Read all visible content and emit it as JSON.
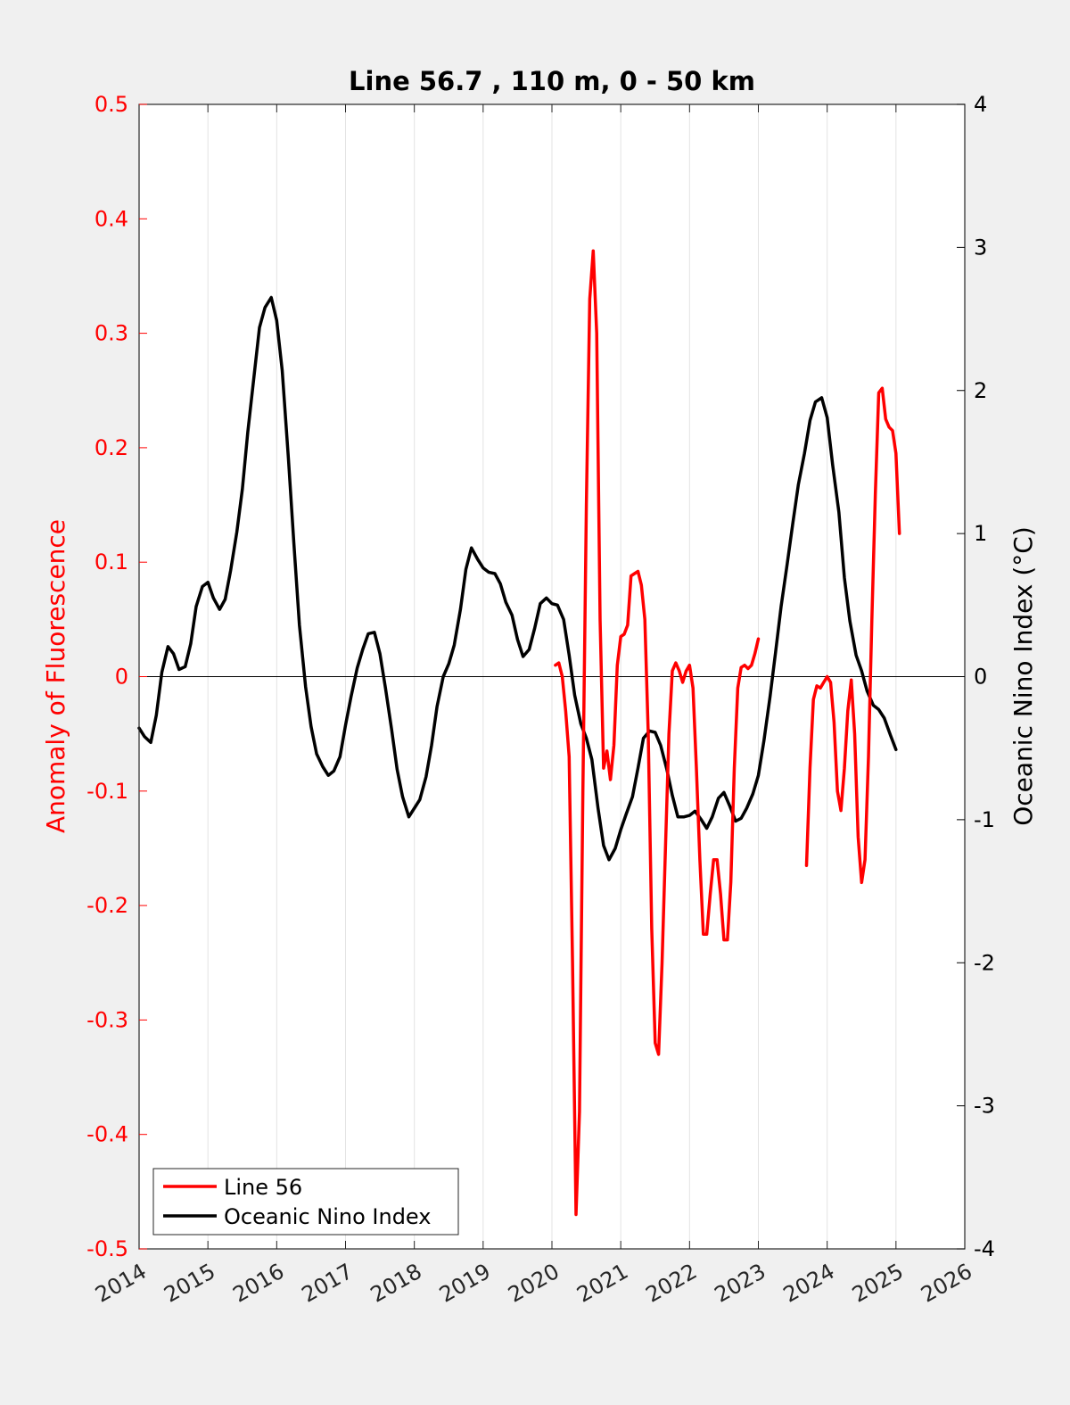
{
  "chart_data": {
    "type": "line",
    "title": "Line 56.7 , 110 m, 0 - 50 km",
    "ylabel_left": "Anomaly of Fluorescence",
    "ylabel_right": "Oceanic Nino Index (°C)",
    "xlim": [
      2014,
      2026
    ],
    "ylim_left": [
      -0.5,
      0.5
    ],
    "ylim_right": [
      -4,
      4
    ],
    "x_ticks": [
      "2014",
      "2015",
      "2016",
      "2017",
      "2018",
      "2019",
      "2020",
      "2021",
      "2022",
      "2023",
      "2024",
      "2025",
      "2026"
    ],
    "y_left_ticks": [
      "0.5",
      "0.4",
      "0.3",
      "0.2",
      "0.1",
      "0",
      "-0.1",
      "-0.2",
      "-0.3",
      "-0.4",
      "-0.5"
    ],
    "y_right_ticks": [
      "4",
      "3",
      "2",
      "1",
      "0",
      "-1",
      "-2",
      "-3",
      "-4"
    ],
    "grid": "vertical",
    "zero_line": true,
    "legend_position": "bottom-left",
    "colors": {
      "line56": "#ff0000",
      "oni": "#000000",
      "left_axis": "#ff0000",
      "right_axis": "#000000"
    },
    "series": [
      {
        "name": "Line 56",
        "axis": "left",
        "segments": [
          [
            [
              2020.05,
              0.01
            ],
            [
              2020.1,
              0.012
            ],
            [
              2020.15,
              0.0
            ],
            [
              2020.2,
              -0.03
            ],
            [
              2020.25,
              -0.07
            ],
            [
              2020.3,
              -0.25
            ],
            [
              2020.35,
              -0.47
            ],
            [
              2020.4,
              -0.38
            ],
            [
              2020.45,
              -0.1
            ],
            [
              2020.5,
              0.15
            ],
            [
              2020.55,
              0.33
            ],
            [
              2020.6,
              0.372
            ],
            [
              2020.65,
              0.3
            ],
            [
              2020.7,
              0.05
            ],
            [
              2020.75,
              -0.08
            ],
            [
              2020.8,
              -0.065
            ],
            [
              2020.85,
              -0.09
            ],
            [
              2020.9,
              -0.06
            ],
            [
              2020.95,
              0.01
            ],
            [
              2021.0,
              0.035
            ],
            [
              2021.05,
              0.037
            ],
            [
              2021.1,
              0.045
            ],
            [
              2021.15,
              0.088
            ],
            [
              2021.2,
              0.09
            ],
            [
              2021.25,
              0.092
            ],
            [
              2021.3,
              0.08
            ],
            [
              2021.35,
              0.05
            ],
            [
              2021.4,
              -0.05
            ],
            [
              2021.45,
              -0.22
            ],
            [
              2021.5,
              -0.32
            ],
            [
              2021.55,
              -0.33
            ],
            [
              2021.6,
              -0.25
            ],
            [
              2021.65,
              -0.15
            ],
            [
              2021.7,
              -0.05
            ],
            [
              2021.75,
              0.005
            ],
            [
              2021.8,
              0.012
            ],
            [
              2021.85,
              0.005
            ],
            [
              2021.9,
              -0.005
            ],
            [
              2021.95,
              0.005
            ],
            [
              2022.0,
              0.01
            ],
            [
              2022.05,
              -0.01
            ],
            [
              2022.1,
              -0.08
            ],
            [
              2022.15,
              -0.16
            ],
            [
              2022.2,
              -0.225
            ],
            [
              2022.25,
              -0.225
            ],
            [
              2022.3,
              -0.19
            ],
            [
              2022.35,
              -0.16
            ],
            [
              2022.4,
              -0.16
            ],
            [
              2022.45,
              -0.19
            ],
            [
              2022.5,
              -0.23
            ],
            [
              2022.55,
              -0.23
            ],
            [
              2022.6,
              -0.18
            ],
            [
              2022.65,
              -0.08
            ],
            [
              2022.7,
              -0.01
            ],
            [
              2022.75,
              0.008
            ],
            [
              2022.8,
              0.01
            ],
            [
              2022.85,
              0.007
            ],
            [
              2022.9,
              0.01
            ],
            [
              2022.95,
              0.02
            ],
            [
              2023.0,
              0.033
            ]
          ],
          [
            [
              2023.7,
              -0.165
            ],
            [
              2023.75,
              -0.08
            ],
            [
              2023.8,
              -0.02
            ],
            [
              2023.85,
              -0.008
            ],
            [
              2023.9,
              -0.01
            ],
            [
              2023.95,
              -0.005
            ],
            [
              2024.0,
              0.0
            ],
            [
              2024.05,
              -0.005
            ],
            [
              2024.1,
              -0.04
            ],
            [
              2024.15,
              -0.1
            ],
            [
              2024.2,
              -0.117
            ],
            [
              2024.25,
              -0.08
            ],
            [
              2024.3,
              -0.03
            ],
            [
              2024.35,
              -0.003
            ],
            [
              2024.4,
              -0.05
            ],
            [
              2024.45,
              -0.14
            ],
            [
              2024.5,
              -0.18
            ],
            [
              2024.55,
              -0.16
            ],
            [
              2024.6,
              -0.07
            ],
            [
              2024.65,
              0.05
            ],
            [
              2024.7,
              0.16
            ],
            [
              2024.75,
              0.248
            ],
            [
              2024.8,
              0.252
            ],
            [
              2024.85,
              0.225
            ],
            [
              2024.9,
              0.218
            ],
            [
              2024.95,
              0.215
            ],
            [
              2025.0,
              0.195
            ],
            [
              2025.05,
              0.125
            ]
          ]
        ]
      },
      {
        "name": "Oceanic Nino Index",
        "axis": "right",
        "segments": [
          [
            [
              2014.0,
              -0.36
            ],
            [
              2014.08,
              -0.42
            ],
            [
              2014.17,
              -0.46
            ],
            [
              2014.25,
              -0.27
            ],
            [
              2014.33,
              0.03
            ],
            [
              2014.42,
              0.21
            ],
            [
              2014.5,
              0.16
            ],
            [
              2014.58,
              0.05
            ],
            [
              2014.67,
              0.07
            ],
            [
              2014.75,
              0.23
            ],
            [
              2014.83,
              0.49
            ],
            [
              2014.92,
              0.63
            ],
            [
              2015.0,
              0.66
            ],
            [
              2015.08,
              0.55
            ],
            [
              2015.17,
              0.47
            ],
            [
              2015.25,
              0.54
            ],
            [
              2015.33,
              0.74
            ],
            [
              2015.42,
              1.01
            ],
            [
              2015.5,
              1.31
            ],
            [
              2015.58,
              1.71
            ],
            [
              2015.67,
              2.1
            ],
            [
              2015.75,
              2.44
            ],
            [
              2015.83,
              2.58
            ],
            [
              2015.92,
              2.65
            ],
            [
              2016.0,
              2.49
            ],
            [
              2016.08,
              2.14
            ],
            [
              2016.17,
              1.52
            ],
            [
              2016.25,
              0.93
            ],
            [
              2016.33,
              0.36
            ],
            [
              2016.42,
              -0.07
            ],
            [
              2016.5,
              -0.35
            ],
            [
              2016.58,
              -0.54
            ],
            [
              2016.67,
              -0.63
            ],
            [
              2016.75,
              -0.69
            ],
            [
              2016.83,
              -0.66
            ],
            [
              2016.92,
              -0.56
            ],
            [
              2017.0,
              -0.34
            ],
            [
              2017.08,
              -0.14
            ],
            [
              2017.17,
              0.06
            ],
            [
              2017.25,
              0.19
            ],
            [
              2017.33,
              0.3
            ],
            [
              2017.42,
              0.31
            ],
            [
              2017.5,
              0.16
            ],
            [
              2017.58,
              -0.08
            ],
            [
              2017.67,
              -0.37
            ],
            [
              2017.75,
              -0.65
            ],
            [
              2017.83,
              -0.84
            ],
            [
              2017.92,
              -0.98
            ],
            [
              2018.0,
              -0.92
            ],
            [
              2018.08,
              -0.86
            ],
            [
              2018.17,
              -0.7
            ],
            [
              2018.25,
              -0.48
            ],
            [
              2018.33,
              -0.21
            ],
            [
              2018.42,
              0.0
            ],
            [
              2018.5,
              0.09
            ],
            [
              2018.58,
              0.22
            ],
            [
              2018.67,
              0.47
            ],
            [
              2018.75,
              0.75
            ],
            [
              2018.83,
              0.9
            ],
            [
              2018.92,
              0.82
            ],
            [
              2019.0,
              0.76
            ],
            [
              2019.08,
              0.73
            ],
            [
              2019.17,
              0.72
            ],
            [
              2019.25,
              0.65
            ],
            [
              2019.33,
              0.52
            ],
            [
              2019.42,
              0.43
            ],
            [
              2019.5,
              0.26
            ],
            [
              2019.58,
              0.14
            ],
            [
              2019.67,
              0.19
            ],
            [
              2019.75,
              0.34
            ],
            [
              2019.83,
              0.51
            ],
            [
              2019.92,
              0.55
            ],
            [
              2020.0,
              0.51
            ],
            [
              2020.08,
              0.5
            ],
            [
              2020.17,
              0.4
            ],
            [
              2020.25,
              0.15
            ],
            [
              2020.33,
              -0.13
            ],
            [
              2020.42,
              -0.33
            ],
            [
              2020.5,
              -0.43
            ],
            [
              2020.58,
              -0.58
            ],
            [
              2020.67,
              -0.92
            ],
            [
              2020.75,
              -1.18
            ],
            [
              2020.83,
              -1.28
            ],
            [
              2020.92,
              -1.2
            ],
            [
              2021.0,
              -1.07
            ],
            [
              2021.08,
              -0.96
            ],
            [
              2021.17,
              -0.84
            ],
            [
              2021.25,
              -0.64
            ],
            [
              2021.33,
              -0.43
            ],
            [
              2021.42,
              -0.38
            ],
            [
              2021.5,
              -0.39
            ],
            [
              2021.58,
              -0.48
            ],
            [
              2021.67,
              -0.65
            ],
            [
              2021.75,
              -0.83
            ],
            [
              2021.83,
              -0.98
            ],
            [
              2021.92,
              -0.98
            ],
            [
              2022.0,
              -0.97
            ],
            [
              2022.08,
              -0.94
            ],
            [
              2022.17,
              -1.0
            ],
            [
              2022.25,
              -1.06
            ],
            [
              2022.33,
              -0.98
            ],
            [
              2022.42,
              -0.85
            ],
            [
              2022.5,
              -0.81
            ],
            [
              2022.58,
              -0.9
            ],
            [
              2022.67,
              -1.01
            ],
            [
              2022.75,
              -0.99
            ],
            [
              2022.83,
              -0.92
            ],
            [
              2022.92,
              -0.82
            ],
            [
              2023.0,
              -0.69
            ],
            [
              2023.08,
              -0.45
            ],
            [
              2023.17,
              -0.14
            ],
            [
              2023.25,
              0.17
            ],
            [
              2023.33,
              0.49
            ],
            [
              2023.42,
              0.79
            ],
            [
              2023.5,
              1.07
            ],
            [
              2023.58,
              1.34
            ],
            [
              2023.67,
              1.56
            ],
            [
              2023.75,
              1.79
            ],
            [
              2023.83,
              1.92
            ],
            [
              2023.92,
              1.95
            ],
            [
              2024.0,
              1.81
            ],
            [
              2024.08,
              1.48
            ],
            [
              2024.17,
              1.15
            ],
            [
              2024.25,
              0.69
            ],
            [
              2024.33,
              0.39
            ],
            [
              2024.42,
              0.15
            ],
            [
              2024.5,
              0.04
            ],
            [
              2024.58,
              -0.1
            ],
            [
              2024.67,
              -0.2
            ],
            [
              2024.75,
              -0.23
            ],
            [
              2024.83,
              -0.29
            ],
            [
              2024.92,
              -0.41
            ],
            [
              2025.0,
              -0.51
            ]
          ]
        ]
      }
    ]
  }
}
